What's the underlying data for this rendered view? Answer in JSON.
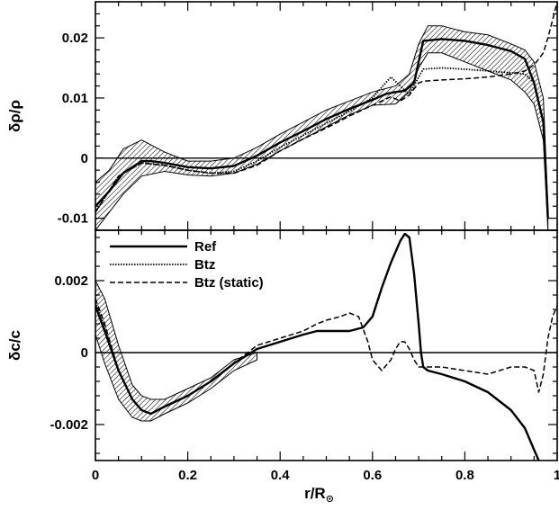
{
  "chart_data": [
    {
      "type": "line",
      "panel": "top",
      "ylabel": "δρ/ρ",
      "xlim": [
        0,
        1
      ],
      "ylim": [
        -0.012,
        0.026
      ],
      "yticks": [
        -0.01,
        0,
        0.01,
        0.02
      ],
      "ytick_labels": [
        "-0.01",
        "0",
        "0.01",
        "0.02"
      ],
      "reference_line": 0,
      "band": {
        "x": [
          0.0,
          0.03,
          0.06,
          0.1,
          0.15,
          0.2,
          0.25,
          0.3,
          0.35,
          0.4,
          0.45,
          0.5,
          0.55,
          0.6,
          0.65,
          0.68,
          0.7,
          0.72,
          0.75,
          0.8,
          0.85,
          0.9,
          0.93,
          0.95,
          0.97,
          0.98
        ],
        "upper": [
          -0.004,
          -0.002,
          0.0015,
          0.003,
          0.001,
          -0.0005,
          -0.0005,
          0.0,
          0.0018,
          0.004,
          0.006,
          0.008,
          0.0095,
          0.011,
          0.012,
          0.014,
          0.019,
          0.022,
          0.022,
          0.021,
          0.0205,
          0.019,
          0.018,
          0.016,
          0.01,
          -0.008
        ],
        "lower": [
          -0.012,
          -0.009,
          -0.006,
          -0.003,
          -0.0022,
          -0.0028,
          -0.003,
          -0.0025,
          -0.001,
          0.0012,
          0.0032,
          0.0052,
          0.0072,
          0.0088,
          0.009,
          0.011,
          0.015,
          0.0175,
          0.0175,
          0.016,
          0.0145,
          0.013,
          0.011,
          0.009,
          0.003,
          -0.012
        ]
      },
      "series": [
        {
          "name": "Ref",
          "x": [
            0.0,
            0.03,
            0.06,
            0.1,
            0.12,
            0.15,
            0.2,
            0.25,
            0.3,
            0.35,
            0.4,
            0.45,
            0.5,
            0.55,
            0.6,
            0.63,
            0.65,
            0.67,
            0.69,
            0.7,
            0.71,
            0.75,
            0.8,
            0.85,
            0.9,
            0.93,
            0.95,
            0.97,
            0.98
          ],
          "y": [
            -0.008,
            -0.0055,
            -0.0025,
            -0.0005,
            -0.0005,
            -0.0008,
            -0.0015,
            -0.0017,
            -0.0013,
            0.0004,
            0.0026,
            0.0045,
            0.0065,
            0.0082,
            0.0097,
            0.0107,
            0.011,
            0.0112,
            0.0125,
            0.016,
            0.0195,
            0.0198,
            0.0195,
            0.0188,
            0.0178,
            0.0165,
            0.0125,
            0.006,
            -0.01
          ]
        },
        {
          "name": "Btz",
          "x": [
            0.0,
            0.05,
            0.1,
            0.15,
            0.2,
            0.25,
            0.3,
            0.35,
            0.4,
            0.45,
            0.5,
            0.55,
            0.6,
            0.62,
            0.64,
            0.66,
            0.68,
            0.7,
            0.71,
            0.75,
            0.8,
            0.85,
            0.9,
            0.93,
            0.95,
            0.97,
            0.98
          ],
          "y": [
            -0.009,
            -0.003,
            -0.0008,
            -0.0012,
            -0.002,
            -0.0025,
            -0.0022,
            -0.0005,
            0.0018,
            0.0038,
            0.0058,
            0.0078,
            0.01,
            0.0118,
            0.0135,
            0.012,
            0.0105,
            0.0135,
            0.0148,
            0.015,
            0.0148,
            0.0145,
            0.0142,
            0.014,
            0.0125,
            0.006,
            -0.01
          ]
        },
        {
          "name": "Btz (static)",
          "x": [
            0.0,
            0.05,
            0.1,
            0.15,
            0.2,
            0.25,
            0.3,
            0.35,
            0.4,
            0.45,
            0.5,
            0.55,
            0.6,
            0.64,
            0.66,
            0.68,
            0.7,
            0.71,
            0.75,
            0.8,
            0.85,
            0.9,
            0.93,
            0.95,
            0.97,
            0.98,
            0.99,
            1.0
          ],
          "y": [
            -0.009,
            -0.003,
            -0.0008,
            -0.0012,
            -0.002,
            -0.0025,
            -0.0025,
            -0.0012,
            0.0012,
            0.0032,
            0.005,
            0.007,
            0.0088,
            0.0102,
            0.0095,
            0.0105,
            0.0125,
            0.0128,
            0.013,
            0.0132,
            0.0135,
            0.014,
            0.0145,
            0.0155,
            0.0175,
            0.02,
            0.023,
            0.026
          ]
        }
      ]
    },
    {
      "type": "line",
      "panel": "bottom",
      "xlabel": "r/R",
      "xlabel_sub": "⊙",
      "ylabel": "δc/c",
      "xlim": [
        0,
        1
      ],
      "ylim": [
        -0.003,
        0.0034
      ],
      "xticks": [
        0,
        0.2,
        0.4,
        0.6,
        0.8,
        1
      ],
      "xtick_labels": [
        "0",
        "0.2",
        "0.4",
        "0.6",
        "0.8",
        "1"
      ],
      "yticks": [
        -0.002,
        0,
        0.002
      ],
      "ytick_labels": [
        "-0.002",
        "0",
        "0.002"
      ],
      "reference_line": 0,
      "legend": {
        "location": "top-left",
        "entries": [
          "Ref",
          "Btz",
          "Btz (static)"
        ]
      },
      "band": {
        "x": [
          0.0,
          0.02,
          0.05,
          0.08,
          0.1,
          0.12,
          0.15,
          0.2,
          0.25,
          0.3,
          0.35
        ],
        "upper": [
          0.002,
          0.0015,
          0.0002,
          -0.0009,
          -0.0012,
          -0.0013,
          -0.0013,
          -0.001,
          -0.0007,
          -0.0002,
          0.0
        ],
        "lower": [
          0.0005,
          -0.0003,
          -0.0013,
          -0.0018,
          -0.0019,
          -0.0019,
          -0.0017,
          -0.0014,
          -0.001,
          -0.0005,
          -0.0002
        ]
      },
      "series": [
        {
          "name": "Ref",
          "x": [
            0.0,
            0.02,
            0.05,
            0.08,
            0.1,
            0.12,
            0.15,
            0.2,
            0.25,
            0.3,
            0.35,
            0.4,
            0.45,
            0.48,
            0.5,
            0.55,
            0.58,
            0.6,
            0.62,
            0.64,
            0.66,
            0.67,
            0.68,
            0.69,
            0.7,
            0.705,
            0.71,
            0.72,
            0.75,
            0.8,
            0.85,
            0.9,
            0.93,
            0.95,
            0.96
          ],
          "y": [
            0.0013,
            0.0006,
            -0.0005,
            -0.0013,
            -0.0016,
            -0.0017,
            -0.0015,
            -0.0012,
            -0.0008,
            -0.0003,
            0.0001,
            0.0003,
            0.0005,
            0.0006,
            0.0006,
            0.0006,
            0.0007,
            0.001,
            0.0018,
            0.0025,
            0.0031,
            0.0033,
            0.0032,
            0.0022,
            0.0008,
            0.0,
            -0.0004,
            -0.0005,
            -0.0006,
            -0.0008,
            -0.0011,
            -0.0016,
            -0.0021,
            -0.0027,
            -0.003
          ]
        },
        {
          "name": "Btz",
          "x": [
            0.0,
            0.02,
            0.05,
            0.08,
            0.1,
            0.12,
            0.15,
            0.2,
            0.25,
            0.3,
            0.35,
            0.4,
            0.45,
            0.48,
            0.5,
            0.55,
            0.58,
            0.6,
            0.62,
            0.64,
            0.66,
            0.67,
            0.68,
            0.69,
            0.7,
            0.705,
            0.71,
            0.72,
            0.75,
            0.8,
            0.85,
            0.9,
            0.93,
            0.95,
            0.96
          ],
          "y": [
            0.0014,
            0.0007,
            -0.0005,
            -0.0013,
            -0.0016,
            -0.0017,
            -0.0015,
            -0.0012,
            -0.0008,
            -0.0003,
            0.0001,
            0.0003,
            0.0005,
            0.0006,
            0.0006,
            0.0006,
            0.0007,
            0.001,
            0.0018,
            0.0025,
            0.0031,
            0.0033,
            0.0032,
            0.0022,
            0.0008,
            0.0,
            -0.0004,
            -0.0005,
            -0.0006,
            -0.0008,
            -0.0011,
            -0.0016,
            -0.0021,
            -0.0027,
            -0.003
          ]
        },
        {
          "name": "Btz (static)",
          "x": [
            0.0,
            0.02,
            0.05,
            0.08,
            0.1,
            0.12,
            0.15,
            0.2,
            0.25,
            0.3,
            0.35,
            0.4,
            0.45,
            0.48,
            0.5,
            0.53,
            0.55,
            0.57,
            0.59,
            0.6,
            0.62,
            0.64,
            0.65,
            0.66,
            0.67,
            0.68,
            0.69,
            0.7,
            0.72,
            0.75,
            0.8,
            0.85,
            0.9,
            0.93,
            0.95,
            0.96,
            0.97,
            0.98,
            0.99,
            1.0
          ],
          "y": [
            0.0015,
            0.0008,
            -0.0005,
            -0.0013,
            -0.0016,
            -0.0017,
            -0.0015,
            -0.0012,
            -0.0008,
            -0.0003,
            0.0002,
            0.0004,
            0.0006,
            0.0008,
            0.0009,
            0.001,
            0.0011,
            0.001,
            0.0003,
            -0.0002,
            -0.0005,
            -0.0002,
            0.0001,
            0.0003,
            0.0003,
            0.0001,
            -0.0002,
            -0.0004,
            -0.0004,
            -0.0004,
            -0.0005,
            -0.0006,
            -0.0004,
            -0.0004,
            -0.0005,
            -0.0011,
            -0.0006,
            0.0004,
            0.001,
            0.0013
          ]
        }
      ]
    }
  ]
}
